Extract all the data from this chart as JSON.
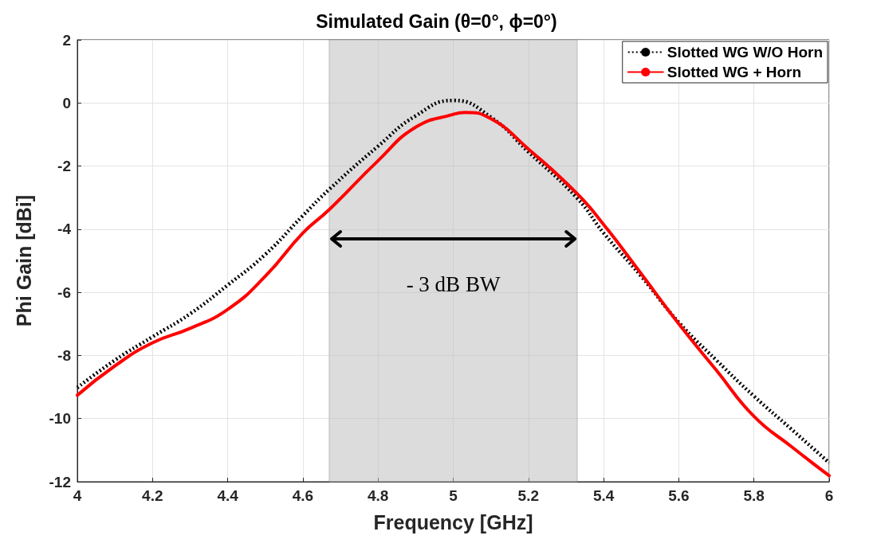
{
  "chart_data": {
    "type": "line",
    "title": "Simulated Gain (θ=0°, ϕ=0°)",
    "xlabel": "Frequency [GHz]",
    "ylabel": "Phi Gain [dBi]",
    "series": [
      {
        "name": "Slotted WG W/O Horn",
        "color": "#000000",
        "line_style": "dotted",
        "x": [
          4.0,
          4.1,
          4.2,
          4.3,
          4.4,
          4.5,
          4.6,
          4.67,
          4.8,
          4.9,
          5.0,
          5.1,
          5.2,
          5.33,
          5.4,
          5.5,
          5.6,
          5.7,
          5.8,
          5.9,
          6.0
        ],
        "values": [
          -9.02,
          -8.15,
          -7.41,
          -6.68,
          -5.77,
          -4.8,
          -3.57,
          -2.74,
          -1.37,
          -0.41,
          0.08,
          -0.45,
          -1.55,
          -3.02,
          -4.12,
          -5.49,
          -6.95,
          -8.15,
          -9.29,
          -10.34,
          -11.4
        ]
      },
      {
        "name": "Slotted WG + Horn",
        "color": "#ff0000",
        "line_style": "solid",
        "x": [
          4.0,
          4.1,
          4.2,
          4.3,
          4.4,
          4.5,
          4.6,
          4.67,
          4.8,
          4.9,
          5.0,
          5.03,
          5.1,
          5.2,
          5.33,
          5.4,
          5.5,
          5.6,
          5.7,
          5.8,
          5.9,
          6.0
        ],
        "values": [
          -9.26,
          -8.33,
          -7.6,
          -7.14,
          -6.54,
          -5.49,
          -4.12,
          -3.38,
          -1.83,
          -0.77,
          -0.36,
          -0.3,
          -0.5,
          -1.46,
          -2.88,
          -3.85,
          -5.41,
          -7.0,
          -8.47,
          -9.93,
          -10.89,
          -11.81
        ]
      }
    ],
    "xlim": [
      4,
      6
    ],
    "xticks": [
      4,
      4.2,
      4.4,
      4.6,
      4.8,
      5,
      5.2,
      5.4,
      5.6,
      5.8,
      6
    ],
    "ylim": [
      -12,
      2
    ],
    "yticks": [
      -12,
      -10,
      -8,
      -6,
      -4,
      -2,
      0,
      2
    ],
    "bands": [
      {
        "axis": "x",
        "from": 4.67,
        "to": 5.33,
        "color": "#bfbfbf"
      }
    ],
    "annotations": [
      "- 3 dB BW"
    ],
    "grid": true,
    "legend": "top right",
    "marker": "none"
  }
}
